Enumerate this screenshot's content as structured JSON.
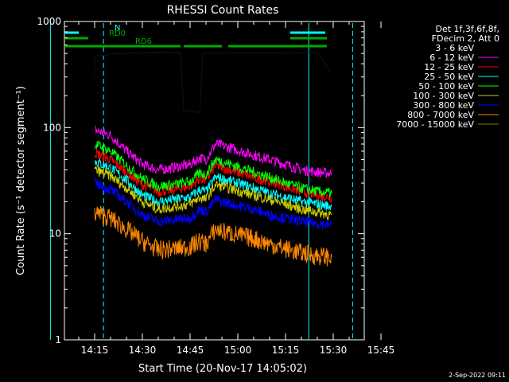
{
  "chart_data": {
    "type": "line",
    "title": "RHESSI Count Rates",
    "xlabel": "Start Time (20-Nov-17 14:05:02)",
    "ylabel": "Count Rate (s⁻¹ detector segment⁻¹)",
    "yscale": "log",
    "ylim": [
      1,
      1000
    ],
    "xlim_minutes": [
      0,
      45
    ],
    "x_tick_labels": [
      "14:15",
      "14:30",
      "14:45",
      "15:00",
      "15:15",
      "15:30",
      "15:45"
    ],
    "x_tick_minutes": [
      10,
      25,
      40,
      55,
      70,
      85,
      100
    ],
    "y_tick_labels": [
      "1",
      "10",
      "100",
      "1000"
    ],
    "y_tick_values": [
      1,
      10,
      100,
      1000
    ],
    "legend_header": [
      "Det 1f,3f,6f,8f,",
      "FDecim 2, Att 0"
    ],
    "legend_position": "right",
    "series": [
      {
        "name": "3 - 6 keV",
        "color": "#000000",
        "x": [
          9.9,
          10,
          14,
          15,
          20,
          25,
          30,
          35,
          37,
          38,
          43,
          44,
          48,
          50,
          60,
          65,
          70,
          75,
          80,
          84.5
        ],
        "values": [
          300,
          470,
          480,
          500,
          500,
          510,
          510,
          510,
          500,
          145,
          140,
          500,
          505,
          505,
          505,
          505,
          505,
          510,
          510,
          320
        ]
      },
      {
        "name": "6 - 12 keV",
        "color": "#ff00ff",
        "x": [
          10,
          15,
          20,
          25,
          30,
          35,
          40,
          43,
          45,
          48,
          50,
          60,
          65,
          70,
          75,
          80,
          84.5
        ],
        "values": [
          95,
          85,
          60,
          45,
          40,
          42,
          45,
          52,
          50,
          70,
          68,
          55,
          50,
          45,
          40,
          38,
          37
        ]
      },
      {
        "name": "12 - 25 keV",
        "color": "#ff0000",
        "x": [
          10,
          15,
          20,
          25,
          30,
          35,
          40,
          43,
          45,
          48,
          50,
          60,
          65,
          70,
          75,
          80,
          84.5
        ],
        "values": [
          58,
          50,
          38,
          29,
          25,
          26,
          28,
          33,
          32,
          44,
          42,
          34,
          31,
          28,
          25,
          23,
          22
        ]
      },
      {
        "name": "25 - 50 keV",
        "color": "#00ffff",
        "x": [
          10,
          15,
          20,
          25,
          30,
          35,
          40,
          43,
          45,
          48,
          50,
          60,
          65,
          70,
          75,
          80,
          84.5
        ],
        "values": [
          48,
          42,
          32,
          23,
          20,
          21,
          22,
          26,
          25,
          34,
          33,
          27,
          24,
          22,
          20,
          19,
          18
        ]
      },
      {
        "name": "50 - 100 keV",
        "color": "#00ff00",
        "x": [
          10,
          15,
          20,
          25,
          30,
          35,
          40,
          43,
          45,
          48,
          50,
          60,
          65,
          70,
          75,
          80,
          84.5
        ],
        "values": [
          70,
          60,
          44,
          33,
          28,
          29,
          31,
          37,
          36,
          50,
          48,
          38,
          34,
          30,
          27,
          25,
          24
        ]
      },
      {
        "name": "100 - 300 keV",
        "color": "#cccc00",
        "x": [
          10,
          15,
          20,
          25,
          30,
          35,
          40,
          43,
          45,
          48,
          50,
          60,
          65,
          70,
          75,
          80,
          84.5
        ],
        "values": [
          40,
          35,
          27,
          20,
          17,
          18,
          19,
          22,
          21,
          29,
          28,
          23,
          21,
          19,
          17,
          16,
          15
        ]
      },
      {
        "name": "300 - 800 keV",
        "color": "#0000ff",
        "x": [
          10,
          15,
          20,
          25,
          30,
          35,
          40,
          43,
          45,
          48,
          50,
          60,
          65,
          70,
          75,
          80,
          84.5
        ],
        "values": [
          30,
          26,
          20,
          15,
          13,
          13.5,
          14,
          17,
          16,
          21,
          20,
          17,
          15,
          14,
          13,
          12.5,
          12
        ]
      },
      {
        "name": "800 - 7000 keV",
        "color": "#ff8800",
        "x": [
          10,
          15,
          20,
          25,
          30,
          35,
          40,
          43,
          45,
          48,
          50,
          60,
          65,
          70,
          75,
          80,
          84.5
        ],
        "values": [
          16,
          14,
          11,
          8.5,
          7,
          7.2,
          7.5,
          8.5,
          8,
          11,
          10.5,
          9,
          8,
          7.2,
          6.6,
          6.2,
          6
        ]
      },
      {
        "name": "7000 - 15000 keV",
        "color": "#808000",
        "x": [],
        "values": []
      }
    ],
    "flag_bars": [
      {
        "label": "N",
        "color": "#00ffff",
        "segments_minutes": [
          [
            -3.9,
            5
          ],
          [
            71.5,
            82.5
          ]
        ]
      },
      {
        "label": "RD0",
        "color": "#00aa00",
        "segments_minutes": [
          [
            -3.9,
            8
          ],
          [
            71.5,
            83
          ]
        ]
      },
      {
        "label": "RD6",
        "color": "#00aa00",
        "segments_minutes": [
          [
            -3.9,
            37
          ],
          [
            38,
            50
          ],
          [
            52,
            83
          ]
        ]
      }
    ],
    "vertical_lines_minutes": [
      {
        "x": -3.9,
        "style": "solid",
        "color": "#00ffff"
      },
      {
        "x": 12.8,
        "style": "dashed",
        "color": "#00ffff"
      },
      {
        "x": 77.3,
        "style": "solid",
        "color": "#00ffff"
      },
      {
        "x": 91.1,
        "style": "dashed",
        "color": "#00ffff"
      }
    ]
  },
  "timestamp": "2-Sep-2022 09:11"
}
